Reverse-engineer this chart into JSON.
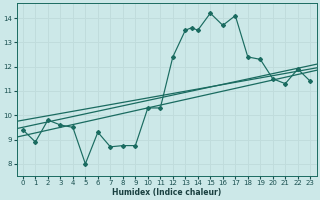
{
  "xlabel": "Humidex (Indice chaleur)",
  "bg_color": "#cce8e8",
  "grid_color": "#c0dcdc",
  "line_color": "#1a6b60",
  "xlim": [
    -0.5,
    23.5
  ],
  "ylim": [
    7.5,
    14.6
  ],
  "xticks": [
    0,
    1,
    2,
    3,
    4,
    5,
    6,
    7,
    8,
    9,
    10,
    11,
    12,
    13,
    14,
    15,
    16,
    17,
    18,
    19,
    20,
    21,
    22,
    23
  ],
  "yticks": [
    8,
    9,
    10,
    11,
    12,
    13,
    14
  ],
  "data_x": [
    0,
    1,
    2,
    3,
    4,
    5,
    6,
    7,
    8,
    9,
    10,
    11,
    12,
    13,
    13.5,
    14,
    15,
    16,
    17,
    18,
    19,
    20,
    21,
    22,
    23
  ],
  "data_y": [
    9.4,
    8.9,
    9.8,
    9.6,
    9.5,
    8.0,
    9.3,
    8.7,
    8.75,
    8.75,
    10.3,
    10.3,
    12.4,
    13.5,
    13.6,
    13.5,
    14.2,
    13.7,
    14.1,
    12.4,
    12.3,
    11.5,
    11.3,
    11.9,
    11.4
  ],
  "trend1_x": [
    -0.5,
    23.5
  ],
  "trend1_y": [
    9.1,
    11.85
  ],
  "trend2_x": [
    -0.5,
    23.5
  ],
  "trend2_y": [
    9.45,
    12.1
  ],
  "trend3_x": [
    -0.5,
    23.5
  ],
  "trend3_y": [
    9.75,
    11.95
  ]
}
